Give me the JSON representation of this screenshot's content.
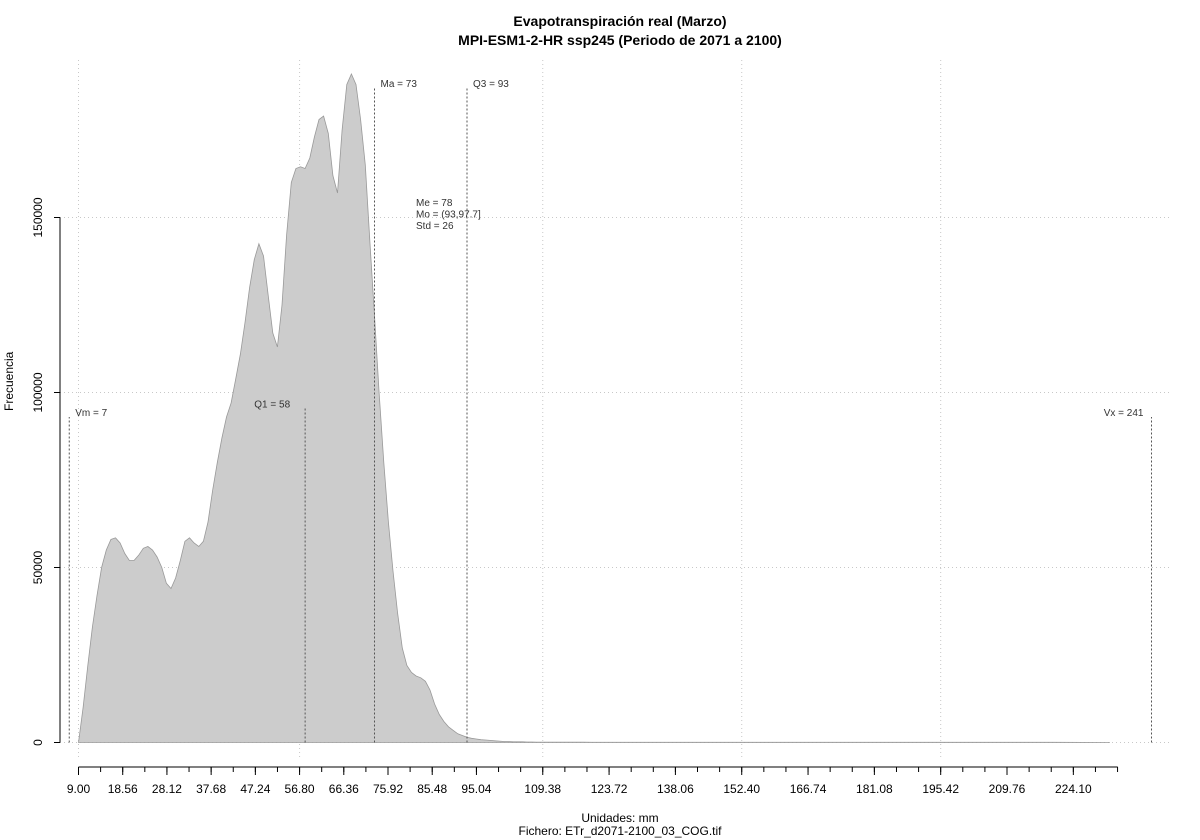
{
  "chart_data": {
    "type": "area",
    "title": "Evapotranspiración real (Marzo)",
    "subtitle": "MPI-ESM1-2-HR ssp245 (Periodo de 2071 a 2100)",
    "xlabel": "Unidades: mm",
    "footer": "Fichero: ETr_d2071-2100_03_COG.tif",
    "ylabel": "Frecuencia",
    "xlim": [
      5,
      245
    ],
    "ylim": [
      -5000,
      195000
    ],
    "x_ticks": [
      9.0,
      18.56,
      28.12,
      37.68,
      47.24,
      56.8,
      66.36,
      75.92,
      85.48,
      95.04,
      109.38,
      123.72,
      138.06,
      152.4,
      166.74,
      181.08,
      195.42,
      209.76,
      224.1
    ],
    "x_tick_labels": [
      "9.00",
      "18.56",
      "28.12",
      "37.68",
      "47.24",
      "56.80",
      "66.36",
      "75.92",
      "85.48",
      "95.04",
      "109.38",
      "123.72",
      "138.06",
      "152.40",
      "166.74",
      "181.08",
      "195.42",
      "209.76",
      "224.10"
    ],
    "y_ticks": [
      0,
      50000,
      100000,
      150000
    ],
    "y_tick_labels": [
      "0",
      "50000",
      "100000",
      "150000"
    ],
    "grid": true,
    "fill_color": "#cccccc",
    "line_color": "#999999",
    "series": [
      {
        "x": [
          9,
          10,
          11,
          12,
          13,
          14,
          15,
          16,
          17,
          18,
          19,
          20,
          21,
          22,
          23,
          24,
          25,
          26,
          27,
          28,
          29,
          30,
          31,
          32,
          33,
          34,
          35,
          36,
          37,
          38,
          39,
          40,
          41,
          42,
          43,
          44,
          45,
          46,
          47,
          48,
          49,
          50,
          51,
          52,
          53,
          54,
          55,
          56,
          57,
          58,
          59,
          60,
          61,
          62,
          63,
          64,
          65,
          66,
          67,
          68,
          69,
          70,
          71,
          72,
          73,
          74,
          75,
          76,
          77,
          78,
          79,
          80,
          81,
          82,
          83,
          84,
          85,
          86,
          87,
          88,
          89,
          90,
          91,
          92,
          93,
          94,
          95,
          96,
          97,
          98,
          99,
          100,
          101,
          102,
          103,
          104,
          105,
          106,
          107,
          108,
          110,
          112,
          114,
          116,
          118,
          120,
          122,
          124,
          126,
          128,
          130,
          134,
          138,
          142,
          150,
          160,
          180,
          200,
          220,
          232
        ],
        "y": [
          0,
          10000,
          22000,
          33000,
          42000,
          50000,
          55000,
          58000,
          58500,
          57000,
          54000,
          52000,
          52000,
          53500,
          55500,
          56000,
          55000,
          53000,
          50000,
          45500,
          44000,
          47000,
          52000,
          57500,
          58500,
          57000,
          56000,
          57500,
          63000,
          72000,
          80000,
          87000,
          93000,
          97000,
          104000,
          111000,
          120000,
          130000,
          138000,
          142500,
          139000,
          128000,
          117000,
          113000,
          125000,
          145000,
          160000,
          164000,
          164500,
          164000,
          167000,
          173000,
          178000,
          179000,
          174000,
          162000,
          157000,
          175000,
          188000,
          191000,
          188000,
          178000,
          165000,
          143000,
          122000,
          100000,
          80000,
          63000,
          49000,
          37000,
          27000,
          22000,
          20000,
          19000,
          18500,
          17500,
          15000,
          11000,
          8000,
          6000,
          4500,
          3500,
          2500,
          2000,
          1500,
          1200,
          1000,
          800,
          700,
          600,
          500,
          400,
          300,
          300,
          200,
          200,
          200,
          150,
          150,
          100,
          100,
          100,
          100,
          100,
          100,
          50,
          50,
          50,
          50,
          50,
          50,
          50,
          50,
          50,
          50,
          50,
          50,
          50,
          50,
          0
        ]
      }
    ],
    "annotations": [
      {
        "label": "Vm = 7",
        "x": 7,
        "y": 93000
      },
      {
        "label": "Q1 = 58",
        "x": 58,
        "y": 95500
      },
      {
        "label": "Ma = 73",
        "x": 73,
        "y": 187000
      },
      {
        "label": "Q3 = 93",
        "x": 93,
        "y": 187000
      },
      {
        "label": "Vx = 241",
        "x": 241,
        "y": 93000
      }
    ],
    "stats": [
      "Me = 78",
      "Mo = (93,97.7]",
      "Std = 26"
    ]
  }
}
